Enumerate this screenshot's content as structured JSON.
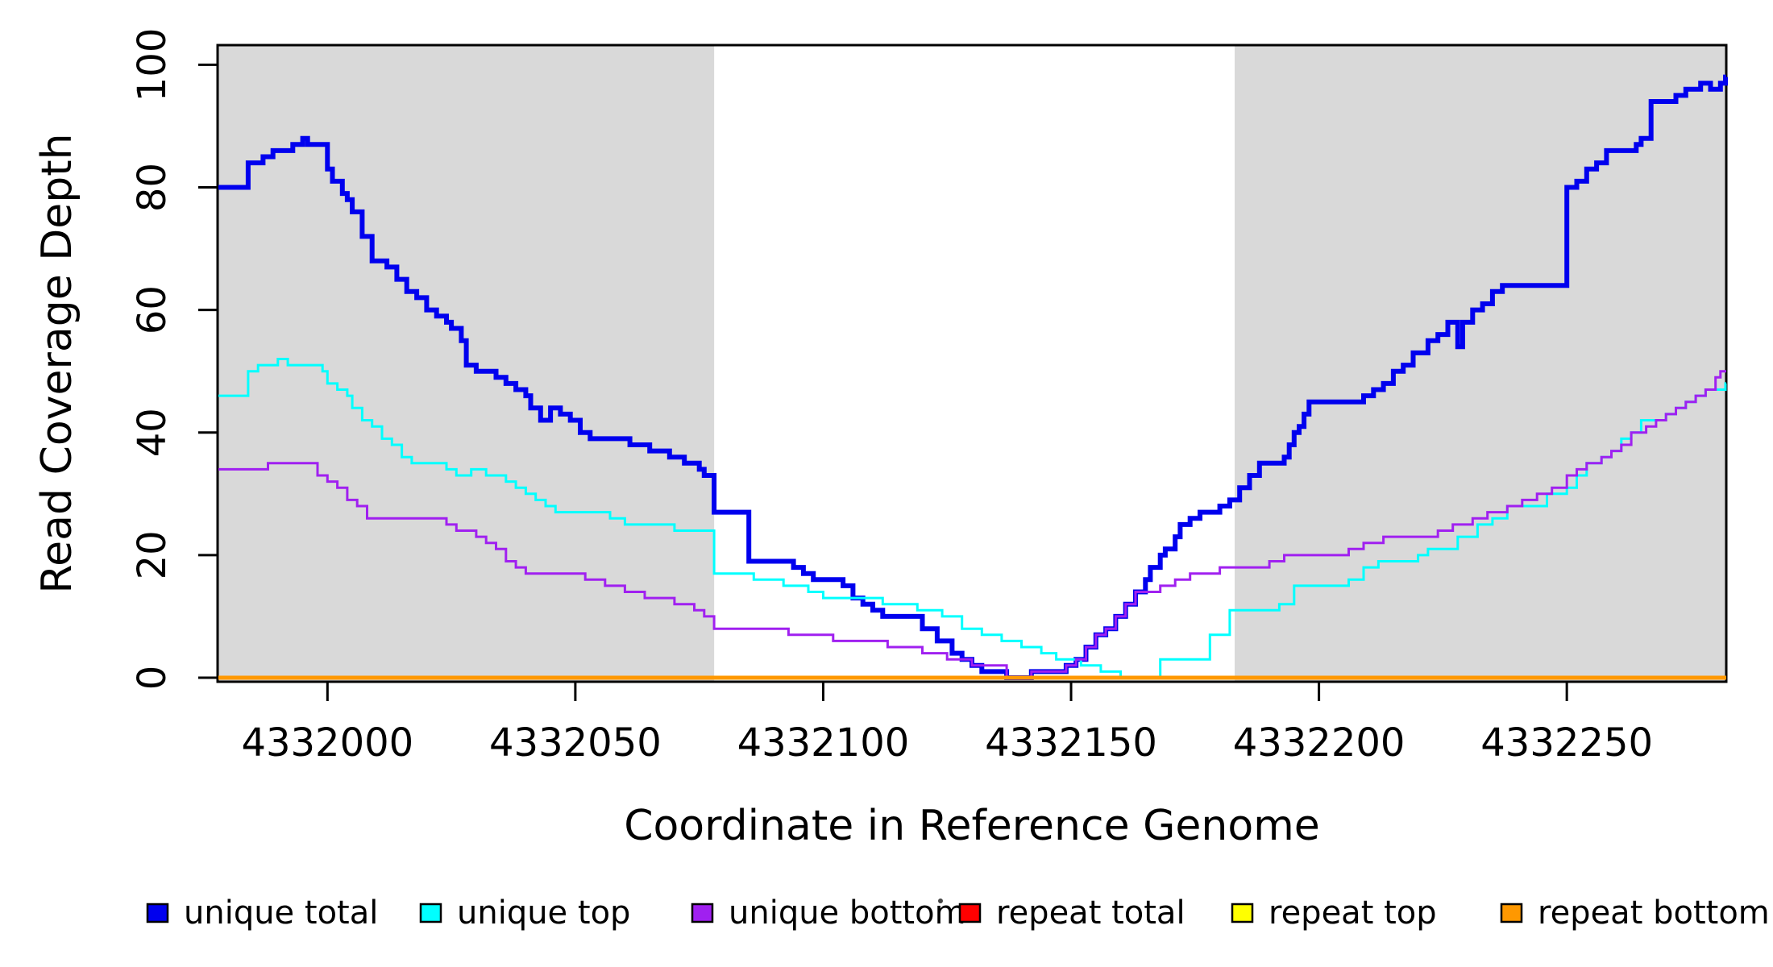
{
  "chart_data": {
    "type": "line",
    "subtype": "step",
    "title": "",
    "xlabel": "Coordinate in Reference Genome",
    "ylabel": "Read Coverage Depth",
    "xlim": [
      4331978,
      4332282
    ],
    "ylim": [
      0,
      103
    ],
    "x_ticks": [
      4332000,
      4332050,
      4332100,
      4332150,
      4332200,
      4332250
    ],
    "y_ticks": [
      0,
      20,
      40,
      60,
      80,
      100
    ],
    "grid": false,
    "background_color": "#ffffff",
    "shade_color": "#d9d9d9",
    "shaded_regions": [
      {
        "from": 4331978,
        "to": 4332078
      },
      {
        "from": 4332183,
        "to": 4332282
      }
    ],
    "legend": {
      "position": "bottom",
      "items": [
        {
          "label": "unique total",
          "color": "#0000ee"
        },
        {
          "label": "unique top",
          "color": "#00ffff"
        },
        {
          "label": "unique bottom",
          "color": "#a020f0"
        },
        {
          "label": "repeat total",
          "color": "#ff0000"
        },
        {
          "label": "repeat top",
          "color": "#ffff00"
        },
        {
          "label": "repeat bottom",
          "color": "#ff9800"
        }
      ]
    },
    "stray_dot_before_repeat_total": true,
    "series": [
      {
        "name": "unique total",
        "color": "#0000ee",
        "width": 6,
        "points": [
          [
            4331978,
            80
          ],
          [
            4331984,
            84
          ],
          [
            4331987,
            85
          ],
          [
            4331989,
            86
          ],
          [
            4331993,
            87
          ],
          [
            4331995,
            88
          ],
          [
            4331996,
            87
          ],
          [
            4332000,
            83
          ],
          [
            4332001,
            81
          ],
          [
            4332003,
            79
          ],
          [
            4332004,
            78
          ],
          [
            4332005,
            76
          ],
          [
            4332007,
            72
          ],
          [
            4332009,
            68
          ],
          [
            4332012,
            67
          ],
          [
            4332014,
            65
          ],
          [
            4332016,
            63
          ],
          [
            4332018,
            62
          ],
          [
            4332020,
            60
          ],
          [
            4332022,
            59
          ],
          [
            4332024,
            58
          ],
          [
            4332025,
            57
          ],
          [
            4332027,
            55
          ],
          [
            4332028,
            51
          ],
          [
            4332030,
            50
          ],
          [
            4332034,
            49
          ],
          [
            4332036,
            48
          ],
          [
            4332038,
            47
          ],
          [
            4332040,
            46
          ],
          [
            4332041,
            44
          ],
          [
            4332043,
            42
          ],
          [
            4332045,
            44
          ],
          [
            4332047,
            43
          ],
          [
            4332049,
            42
          ],
          [
            4332051,
            40
          ],
          [
            4332053,
            39
          ],
          [
            4332061,
            38
          ],
          [
            4332065,
            37
          ],
          [
            4332069,
            36
          ],
          [
            4332072,
            35
          ],
          [
            4332075,
            34
          ],
          [
            4332076,
            33
          ],
          [
            4332078,
            27
          ],
          [
            4332085,
            19
          ],
          [
            4332094,
            18
          ],
          [
            4332096,
            17
          ],
          [
            4332098,
            16
          ],
          [
            4332104,
            15
          ],
          [
            4332106,
            13
          ],
          [
            4332108,
            12
          ],
          [
            4332110,
            11
          ],
          [
            4332112,
            10
          ],
          [
            4332120,
            8
          ],
          [
            4332123,
            6
          ],
          [
            4332126,
            4
          ],
          [
            4332128,
            3
          ],
          [
            4332130,
            2
          ],
          [
            4332132,
            1
          ],
          [
            4332137,
            0
          ],
          [
            4332142,
            1
          ],
          [
            4332149,
            2
          ],
          [
            4332151,
            3
          ],
          [
            4332153,
            5
          ],
          [
            4332155,
            7
          ],
          [
            4332157,
            8
          ],
          [
            4332159,
            10
          ],
          [
            4332161,
            12
          ],
          [
            4332163,
            14
          ],
          [
            4332165,
            16
          ],
          [
            4332166,
            18
          ],
          [
            4332168,
            20
          ],
          [
            4332169,
            21
          ],
          [
            4332171,
            23
          ],
          [
            4332172,
            25
          ],
          [
            4332174,
            26
          ],
          [
            4332176,
            27
          ],
          [
            4332180,
            28
          ],
          [
            4332182,
            29
          ],
          [
            4332184,
            31
          ],
          [
            4332186,
            33
          ],
          [
            4332188,
            35
          ],
          [
            4332193,
            36
          ],
          [
            4332194,
            38
          ],
          [
            4332195,
            40
          ],
          [
            4332196,
            41
          ],
          [
            4332197,
            43
          ],
          [
            4332198,
            45
          ],
          [
            4332209,
            46
          ],
          [
            4332211,
            47
          ],
          [
            4332213,
            48
          ],
          [
            4332215,
            50
          ],
          [
            4332217,
            51
          ],
          [
            4332219,
            53
          ],
          [
            4332222,
            55
          ],
          [
            4332224,
            56
          ],
          [
            4332226,
            58
          ],
          [
            4332228,
            54
          ],
          [
            4332229,
            58
          ],
          [
            4332231,
            60
          ],
          [
            4332233,
            61
          ],
          [
            4332235,
            63
          ],
          [
            4332237,
            64
          ],
          [
            4332250,
            80
          ],
          [
            4332252,
            81
          ],
          [
            4332254,
            83
          ],
          [
            4332256,
            84
          ],
          [
            4332258,
            86
          ],
          [
            4332264,
            87
          ],
          [
            4332265,
            88
          ],
          [
            4332267,
            94
          ],
          [
            4332272,
            95
          ],
          [
            4332274,
            96
          ],
          [
            4332277,
            97
          ],
          [
            4332279,
            96
          ],
          [
            4332281,
            97
          ],
          [
            4332282,
            98
          ]
        ]
      },
      {
        "name": "unique top",
        "color": "#00ffff",
        "width": 3,
        "points": [
          [
            4331978,
            46
          ],
          [
            4331984,
            50
          ],
          [
            4331986,
            51
          ],
          [
            4331990,
            52
          ],
          [
            4331992,
            51
          ],
          [
            4331999,
            50
          ],
          [
            4332000,
            48
          ],
          [
            4332002,
            47
          ],
          [
            4332004,
            46
          ],
          [
            4332005,
            44
          ],
          [
            4332007,
            42
          ],
          [
            4332009,
            41
          ],
          [
            4332011,
            39
          ],
          [
            4332013,
            38
          ],
          [
            4332015,
            36
          ],
          [
            4332017,
            35
          ],
          [
            4332024,
            34
          ],
          [
            4332026,
            33
          ],
          [
            4332029,
            34
          ],
          [
            4332032,
            33
          ],
          [
            4332036,
            32
          ],
          [
            4332038,
            31
          ],
          [
            4332040,
            30
          ],
          [
            4332042,
            29
          ],
          [
            4332044,
            28
          ],
          [
            4332046,
            27
          ],
          [
            4332057,
            26
          ],
          [
            4332060,
            25
          ],
          [
            4332070,
            24
          ],
          [
            4332078,
            17
          ],
          [
            4332086,
            16
          ],
          [
            4332092,
            15
          ],
          [
            4332097,
            14
          ],
          [
            4332100,
            13
          ],
          [
            4332112,
            12
          ],
          [
            4332119,
            11
          ],
          [
            4332124,
            10
          ],
          [
            4332128,
            8
          ],
          [
            4332132,
            7
          ],
          [
            4332136,
            6
          ],
          [
            4332140,
            5
          ],
          [
            4332144,
            4
          ],
          [
            4332147,
            3
          ],
          [
            4332152,
            2
          ],
          [
            4332156,
            1
          ],
          [
            4332160,
            0
          ],
          [
            4332168,
            3
          ],
          [
            4332178,
            7
          ],
          [
            4332182,
            11
          ],
          [
            4332192,
            12
          ],
          [
            4332195,
            15
          ],
          [
            4332206,
            16
          ],
          [
            4332209,
            18
          ],
          [
            4332212,
            19
          ],
          [
            4332220,
            20
          ],
          [
            4332222,
            21
          ],
          [
            4332228,
            23
          ],
          [
            4332232,
            25
          ],
          [
            4332235,
            26
          ],
          [
            4332238,
            28
          ],
          [
            4332246,
            30
          ],
          [
            4332250,
            31
          ],
          [
            4332252,
            33
          ],
          [
            4332254,
            35
          ],
          [
            4332257,
            36
          ],
          [
            4332259,
            37
          ],
          [
            4332261,
            39
          ],
          [
            4332263,
            40
          ],
          [
            4332265,
            42
          ],
          [
            4332270,
            43
          ],
          [
            4332272,
            44
          ],
          [
            4332274,
            45
          ],
          [
            4332276,
            46
          ],
          [
            4332278,
            47
          ],
          [
            4332282,
            48
          ]
        ]
      },
      {
        "name": "unique bottom",
        "color": "#a020f0",
        "width": 3,
        "points": [
          [
            4331978,
            34
          ],
          [
            4331988,
            35
          ],
          [
            4331998,
            33
          ],
          [
            4332000,
            32
          ],
          [
            4332002,
            31
          ],
          [
            4332004,
            29
          ],
          [
            4332006,
            28
          ],
          [
            4332008,
            26
          ],
          [
            4332024,
            25
          ],
          [
            4332026,
            24
          ],
          [
            4332030,
            23
          ],
          [
            4332032,
            22
          ],
          [
            4332034,
            21
          ],
          [
            4332036,
            19
          ],
          [
            4332038,
            18
          ],
          [
            4332040,
            17
          ],
          [
            4332052,
            16
          ],
          [
            4332056,
            15
          ],
          [
            4332060,
            14
          ],
          [
            4332064,
            13
          ],
          [
            4332070,
            12
          ],
          [
            4332074,
            11
          ],
          [
            4332076,
            10
          ],
          [
            4332078,
            8
          ],
          [
            4332093,
            7
          ],
          [
            4332102,
            6
          ],
          [
            4332113,
            5
          ],
          [
            4332120,
            4
          ],
          [
            4332125,
            3
          ],
          [
            4332130,
            2
          ],
          [
            4332137,
            0
          ],
          [
            4332142,
            1
          ],
          [
            4332149,
            2
          ],
          [
            4332151,
            3
          ],
          [
            4332153,
            5
          ],
          [
            4332155,
            7
          ],
          [
            4332157,
            8
          ],
          [
            4332159,
            10
          ],
          [
            4332161,
            12
          ],
          [
            4332163,
            14
          ],
          [
            4332168,
            15
          ],
          [
            4332171,
            16
          ],
          [
            4332174,
            17
          ],
          [
            4332180,
            18
          ],
          [
            4332190,
            19
          ],
          [
            4332193,
            20
          ],
          [
            4332206,
            21
          ],
          [
            4332209,
            22
          ],
          [
            4332213,
            23
          ],
          [
            4332224,
            24
          ],
          [
            4332227,
            25
          ],
          [
            4332231,
            26
          ],
          [
            4332234,
            27
          ],
          [
            4332238,
            28
          ],
          [
            4332241,
            29
          ],
          [
            4332244,
            30
          ],
          [
            4332247,
            31
          ],
          [
            4332250,
            33
          ],
          [
            4332252,
            34
          ],
          [
            4332254,
            35
          ],
          [
            4332257,
            36
          ],
          [
            4332259,
            37
          ],
          [
            4332261,
            38
          ],
          [
            4332263,
            40
          ],
          [
            4332266,
            41
          ],
          [
            4332268,
            42
          ],
          [
            4332270,
            43
          ],
          [
            4332272,
            44
          ],
          [
            4332274,
            45
          ],
          [
            4332276,
            46
          ],
          [
            4332278,
            47
          ],
          [
            4332280,
            49
          ],
          [
            4332281,
            50
          ],
          [
            4332282,
            50
          ]
        ]
      },
      {
        "name": "repeat total",
        "color": "#ff0000",
        "width": 3,
        "points": [
          [
            4331978,
            0
          ],
          [
            4332282,
            0
          ]
        ]
      },
      {
        "name": "repeat top",
        "color": "#ffff00",
        "width": 3,
        "points": [
          [
            4331978,
            0
          ],
          [
            4332282,
            0
          ]
        ]
      },
      {
        "name": "repeat bottom",
        "color": "#ff9800",
        "width": 5,
        "points": [
          [
            4331978,
            0
          ],
          [
            4332282,
            0
          ]
        ]
      }
    ]
  }
}
